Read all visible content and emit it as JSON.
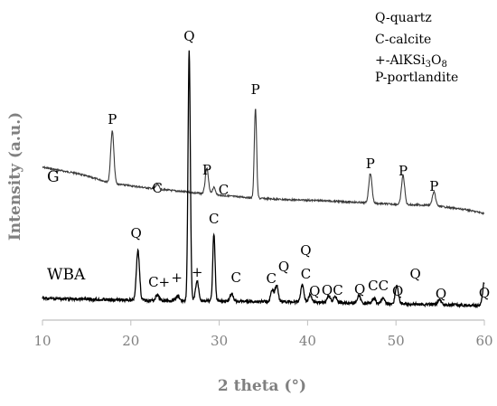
{
  "chart_data": {
    "type": "line",
    "xlabel": "2 theta (°)",
    "ylabel": "Intensity (a.u.)",
    "xlim": [
      10,
      60
    ],
    "xticks": [
      10,
      20,
      30,
      40,
      50,
      60
    ],
    "y_ticks_shown": false,
    "grid": false,
    "legend": {
      "placement": "top-right",
      "entries": [
        "Q-quartz",
        "C-calcite",
        "+-AlKSi3O8",
        "P-portlandite"
      ]
    },
    "series": [
      {
        "name": "G",
        "color": "#3a3a3a",
        "baseline": [
          [
            10,
            185
          ],
          [
            14,
            192
          ],
          [
            18,
            203
          ],
          [
            22,
            208
          ],
          [
            26,
            212
          ],
          [
            30,
            216
          ],
          [
            34,
            219
          ],
          [
            38,
            221
          ],
          [
            42,
            222
          ],
          [
            46,
            224
          ],
          [
            50,
            226
          ],
          [
            54,
            227
          ],
          [
            58,
            232
          ],
          [
            60,
            236
          ]
        ],
        "peaks": [
          {
            "x": 17.9,
            "height": 58,
            "label": "P"
          },
          {
            "x": 23.0,
            "height": 5,
            "label": "C"
          },
          {
            "x": 28.6,
            "height": 28,
            "label": "P"
          },
          {
            "x": 29.4,
            "height": 8,
            "label": "C"
          },
          {
            "x": 34.1,
            "height": 99,
            "label": "P"
          },
          {
            "x": 47.1,
            "height": 33,
            "label": "P"
          },
          {
            "x": 50.8,
            "height": 32,
            "label": "P"
          },
          {
            "x": 54.3,
            "height": 15,
            "label": "P"
          }
        ]
      },
      {
        "name": "WBA",
        "color": "#000000",
        "baseline": [
          [
            10,
            330
          ],
          [
            20,
            332
          ],
          [
            30,
            333
          ],
          [
            40,
            334
          ],
          [
            50,
            336
          ],
          [
            60,
            338
          ]
        ],
        "peaks": [
          {
            "x": 20.8,
            "height": 55,
            "label": "Q"
          },
          {
            "x": 23.0,
            "height": 6,
            "label": "C+"
          },
          {
            "x": 25.3,
            "height": 5,
            "label": "+"
          },
          {
            "x": 26.6,
            "height": 278,
            "label": "Q"
          },
          {
            "x": 27.5,
            "height": 22,
            "label": "+"
          },
          {
            "x": 29.4,
            "height": 74,
            "label": "C"
          },
          {
            "x": 31.4,
            "height": 8,
            "label": "C"
          },
          {
            "x": 36.0,
            "height": 12,
            "label": "C"
          },
          {
            "x": 36.5,
            "height": 18,
            "label": "Q"
          },
          {
            "x": 39.4,
            "height": 19,
            "label": "C"
          },
          {
            "x": 40.3,
            "height": 8,
            "label": "Q"
          },
          {
            "x": 42.4,
            "height": 7,
            "label": "Q"
          },
          {
            "x": 43.1,
            "height": 7,
            "label": "C"
          },
          {
            "x": 45.8,
            "height": 8,
            "label": "Q"
          },
          {
            "x": 47.5,
            "height": 6,
            "label": "C"
          },
          {
            "x": 48.5,
            "height": 6,
            "label": "C"
          },
          {
            "x": 50.1,
            "height": 20,
            "label": "Q"
          },
          {
            "x": 54.9,
            "height": 6,
            "label": "Q"
          },
          {
            "x": 60.0,
            "height": 26,
            "label": "Q"
          }
        ]
      }
    ],
    "annotations": [
      {
        "text": "P",
        "x": 17.9,
        "series": "G"
      },
      {
        "text": "C",
        "x": 23.0,
        "series": "G"
      },
      {
        "text": "P",
        "x": 28.6,
        "series": "G"
      },
      {
        "text": "C",
        "x": 30.5,
        "series": "G"
      },
      {
        "text": "P",
        "x": 34.1,
        "series": "G"
      },
      {
        "text": "P",
        "x": 47.1,
        "series": "G"
      },
      {
        "text": "P",
        "x": 50.8,
        "series": "G"
      },
      {
        "text": "P",
        "x": 54.3,
        "series": "G"
      },
      {
        "text": "Q",
        "x": 26.6,
        "series": "WBA"
      },
      {
        "text": "Q",
        "x": 20.6,
        "series": "WBA"
      },
      {
        "text": "C+",
        "x": 23.2,
        "series": "WBA"
      },
      {
        "text": "+",
        "x": 25.2,
        "series": "WBA"
      },
      {
        "text": "+",
        "x": 27.5,
        "series": "WBA"
      },
      {
        "text": "C",
        "x": 29.4,
        "series": "WBA"
      },
      {
        "text": "C",
        "x": 31.9,
        "series": "WBA"
      },
      {
        "text": "C",
        "x": 35.9,
        "series": "WBA"
      },
      {
        "text": "Q",
        "x": 37.3,
        "series": "WBA"
      },
      {
        "text": "Q",
        "x": 39.8,
        "series": "WBA"
      },
      {
        "text": "C",
        "x": 39.8,
        "series": "WBA"
      },
      {
        "text": "Q",
        "x": 40.8,
        "series": "WBA"
      },
      {
        "text": "QC",
        "x": 42.8,
        "series": "WBA"
      },
      {
        "text": "Q",
        "x": 45.9,
        "series": "WBA"
      },
      {
        "text": "CC",
        "x": 48.0,
        "series": "WBA"
      },
      {
        "text": "Q",
        "x": 50.2,
        "series": "WBA"
      },
      {
        "text": "Q",
        "x": 52.2,
        "series": "WBA"
      },
      {
        "text": "Q",
        "x": 55.1,
        "series": "WBA"
      },
      {
        "text": "Q",
        "x": 60.0,
        "series": "WBA"
      }
    ]
  },
  "labels": {
    "series_g": "G",
    "series_wba": "WBA",
    "legend": [
      "Q-quartz",
      "C-calcite",
      "+-AlKSi",
      "P-portlandite"
    ],
    "legend_formula_sub1": "3",
    "legend_formula_mid": "O",
    "legend_formula_sub2": "8"
  }
}
